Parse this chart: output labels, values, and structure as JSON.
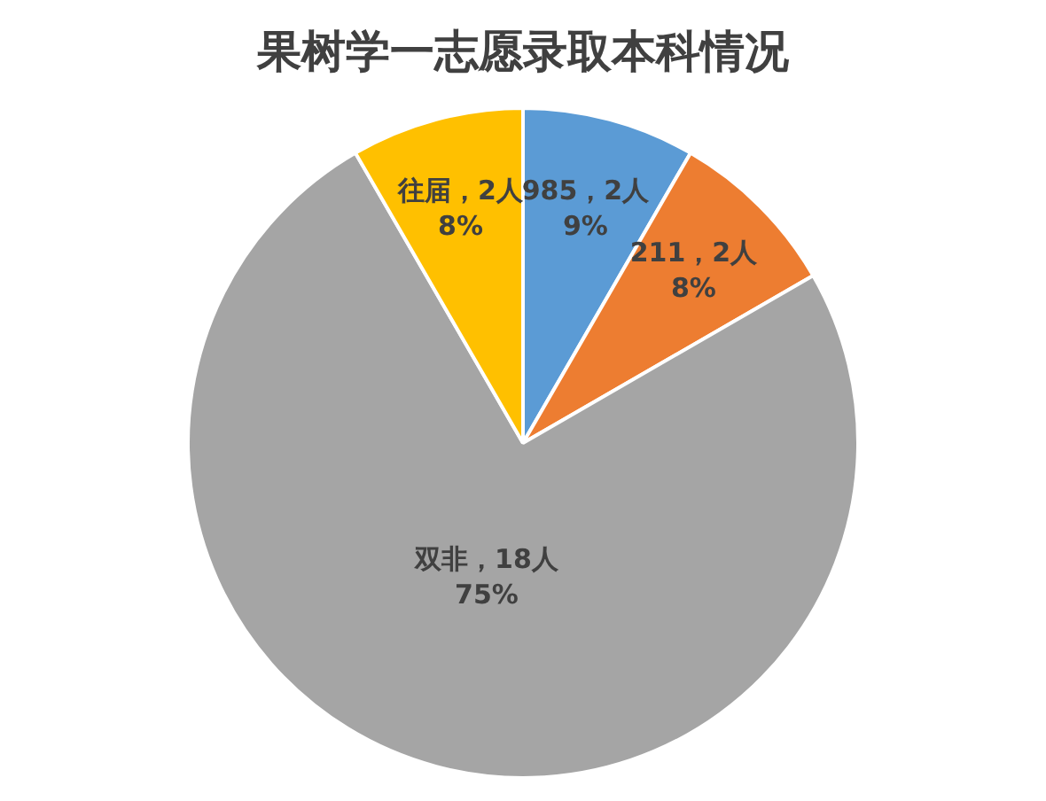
{
  "chart_data": {
    "type": "pie",
    "title": "果树学一志愿录取本科情况",
    "categories": [
      "985",
      "211",
      "双非",
      "往届"
    ],
    "values": [
      2,
      2,
      18,
      2
    ],
    "colors": [
      "#5b9bd5",
      "#ed7d31",
      "#a5a5a5",
      "#ffc000"
    ],
    "value_labels": [
      "，2人\n9%",
      "，2人\n8%",
      "，18人\n75%",
      "，2人\n8%"
    ],
    "legend": false
  }
}
